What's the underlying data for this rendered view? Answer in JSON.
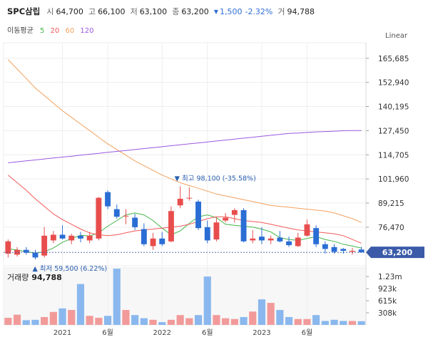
{
  "header": {
    "name": "SPC삼립",
    "open_label": "시",
    "open": "64,700",
    "high_label": "고",
    "high": "66,100",
    "low_label": "저",
    "low": "63,100",
    "close_label": "종",
    "close": "63,200",
    "change_arrow": "▼",
    "change": "1,500",
    "change_pct": "-2.32%",
    "volume_label": "거",
    "volume": "94,788"
  },
  "ma_legend": {
    "title": "이동평균",
    "periods": [
      {
        "label": "5",
        "color": "#43b549"
      },
      {
        "label": "20",
        "color": "#f15a5a"
      },
      {
        "label": "60",
        "color": "#f2a15d"
      },
      {
        "label": "120",
        "color": "#9a58e0"
      }
    ]
  },
  "scale_mode": "Linear",
  "annotations": {
    "high_marker": "▼ 최고 98,100 (-35.58%)",
    "low_marker": "▲ 최저 59,500 (6.22%)"
  },
  "last_price_tag": "63,200",
  "volume_panel": {
    "title": "거래량",
    "value": "94,788"
  },
  "colors": {
    "up": "#e84d4d",
    "down": "#2a6dd4",
    "vol_up": "#f29a9a",
    "vol_down": "#8ab8ee",
    "tag": "#3b5ba8"
  },
  "chart_data": {
    "type": "candlestick",
    "price_axis": {
      "ylim": [
        58000,
        172000
      ],
      "ticks": [
        165685,
        152940,
        140195,
        127450,
        114705,
        101960,
        89215,
        76470
      ],
      "tick_labels": [
        "165,685",
        "152,940",
        "140,195",
        "127,450",
        "114,705",
        "101,960",
        "89,215",
        "76,470"
      ]
    },
    "volume_axis": {
      "ylim": [
        0,
        1450000
      ],
      "ticks": [
        1230000,
        923000,
        615000,
        308000
      ],
      "tick_labels": [
        "1.23m",
        "923k",
        "615k",
        "308k"
      ]
    },
    "x_ticks": [
      {
        "label": "2021",
        "index": 6
      },
      {
        "label": "6월",
        "index": 11
      },
      {
        "label": "2022",
        "index": 17
      },
      {
        "label": "6월",
        "index": 22
      },
      {
        "label": "2023",
        "index": 28
      },
      {
        "label": "6월",
        "index": 33
      }
    ],
    "candles": [
      {
        "o": 62500,
        "h": 70000,
        "l": 60500,
        "c": 69000
      },
      {
        "o": 62000,
        "h": 66000,
        "l": 61000,
        "c": 64500
      },
      {
        "o": 64500,
        "h": 66000,
        "l": 62000,
        "c": 63000
      },
      {
        "o": 63000,
        "h": 64500,
        "l": 59500,
        "c": 60500
      },
      {
        "o": 61500,
        "h": 76500,
        "l": 60500,
        "c": 72000
      },
      {
        "o": 69500,
        "h": 74500,
        "l": 68000,
        "c": 72500
      },
      {
        "o": 72500,
        "h": 77500,
        "l": 70000,
        "c": 70500
      },
      {
        "o": 69500,
        "h": 73000,
        "l": 67500,
        "c": 72000
      },
      {
        "o": 72000,
        "h": 74000,
        "l": 68500,
        "c": 70500
      },
      {
        "o": 69500,
        "h": 74000,
        "l": 68000,
        "c": 72000
      },
      {
        "o": 70500,
        "h": 92500,
        "l": 69500,
        "c": 92000
      },
      {
        "o": 95000,
        "h": 96000,
        "l": 86000,
        "c": 87500
      },
      {
        "o": 86000,
        "h": 88500,
        "l": 81000,
        "c": 82000
      },
      {
        "o": 82500,
        "h": 86000,
        "l": 78000,
        "c": 82500
      },
      {
        "o": 81500,
        "h": 83500,
        "l": 75000,
        "c": 76500
      },
      {
        "o": 75500,
        "h": 78500,
        "l": 66500,
        "c": 67500
      },
      {
        "o": 66500,
        "h": 73500,
        "l": 64500,
        "c": 70500
      },
      {
        "o": 70500,
        "h": 74000,
        "l": 66500,
        "c": 67500
      },
      {
        "o": 69000,
        "h": 87500,
        "l": 68500,
        "c": 85000
      },
      {
        "o": 88000,
        "h": 98100,
        "l": 86500,
        "c": 91500
      },
      {
        "o": 92000,
        "h": 97500,
        "l": 90500,
        "c": 92000
      },
      {
        "o": 90000,
        "h": 91000,
        "l": 75000,
        "c": 76000
      },
      {
        "o": 76500,
        "h": 80000,
        "l": 68000,
        "c": 69500
      },
      {
        "o": 70000,
        "h": 81500,
        "l": 69000,
        "c": 79000
      },
      {
        "o": 80000,
        "h": 84000,
        "l": 79000,
        "c": 81500
      },
      {
        "o": 83000,
        "h": 86500,
        "l": 79000,
        "c": 85500
      },
      {
        "o": 85500,
        "h": 86500,
        "l": 68500,
        "c": 69000
      },
      {
        "o": 69500,
        "h": 75000,
        "l": 68000,
        "c": 70500
      },
      {
        "o": 71500,
        "h": 76500,
        "l": 67500,
        "c": 69500
      },
      {
        "o": 69500,
        "h": 72000,
        "l": 67500,
        "c": 70500
      },
      {
        "o": 71000,
        "h": 74500,
        "l": 68500,
        "c": 69000
      },
      {
        "o": 69000,
        "h": 71500,
        "l": 66000,
        "c": 67000
      },
      {
        "o": 66500,
        "h": 73500,
        "l": 66000,
        "c": 71000
      },
      {
        "o": 72000,
        "h": 80500,
        "l": 71500,
        "c": 78000
      },
      {
        "o": 76000,
        "h": 77500,
        "l": 66000,
        "c": 67500
      },
      {
        "o": 67500,
        "h": 69000,
        "l": 62500,
        "c": 65000
      },
      {
        "o": 66000,
        "h": 67500,
        "l": 62500,
        "c": 63500
      },
      {
        "o": 65000,
        "h": 65500,
        "l": 62500,
        "c": 64000
      },
      {
        "o": 63500,
        "h": 65500,
        "l": 62000,
        "c": 64000
      },
      {
        "o": 64700,
        "h": 66100,
        "l": 63100,
        "c": 63200
      }
    ],
    "volume": [
      180000,
      260000,
      120000,
      130000,
      200000,
      330000,
      420000,
      380000,
      1040000,
      230000,
      180000,
      230000,
      1430000,
      380000,
      250000,
      170000,
      130000,
      70000,
      130000,
      250000,
      170000,
      250000,
      1230000,
      250000,
      170000,
      150000,
      200000,
      340000,
      650000,
      560000,
      380000,
      200000,
      150000,
      150000,
      250000,
      100000,
      130000,
      100000,
      100000,
      94788
    ],
    "ma_series": [
      {
        "name": "5",
        "color": "#43b549",
        "values": [
          65000,
          64500,
          63500,
          62800,
          63500,
          65500,
          68500,
          70500,
          72200,
          71800,
          73500,
          77000,
          80000,
          83000,
          84000,
          83000,
          80000,
          76000,
          72500,
          74500,
          78500,
          82000,
          83000,
          81500,
          78000,
          77500,
          77000,
          76500,
          75500,
          74000,
          71000,
          70000,
          69500,
          70500,
          71500,
          70000,
          69000,
          67500,
          66500,
          65500
        ]
      },
      {
        "name": "20",
        "color": "#f15a5a",
        "values": [
          104000,
          100000,
          96000,
          91500,
          87500,
          83500,
          80500,
          78000,
          75500,
          73500,
          72500,
          72000,
          72500,
          73500,
          74500,
          75000,
          75500,
          76000,
          76500,
          77000,
          78000,
          79500,
          81000,
          82000,
          82000,
          81000,
          80000,
          79500,
          79000,
          78000,
          77000,
          76000,
          75000,
          74500,
          74000,
          73500,
          73000,
          72000,
          70000,
          68000
        ]
      },
      {
        "name": "60",
        "color": "#f2a15d",
        "values": [
          165000,
          160000,
          155000,
          150000,
          146000,
          142000,
          138000,
          134500,
          131000,
          127500,
          124000,
          120500,
          117500,
          114500,
          111500,
          109000,
          106500,
          104000,
          102000,
          100000,
          98500,
          97000,
          95500,
          94000,
          93000,
          92000,
          91000,
          90000,
          89000,
          88000,
          87500,
          87000,
          86500,
          86000,
          85500,
          85000,
          84000,
          82500,
          81000,
          79000
        ]
      },
      {
        "name": "120",
        "color": "#9a58e0",
        "values": [
          110500,
          111000,
          111500,
          112000,
          112500,
          113000,
          113500,
          114000,
          114500,
          115000,
          115500,
          116000,
          116500,
          117000,
          117500,
          118000,
          118500,
          119000,
          119500,
          120000,
          120500,
          121000,
          121500,
          122000,
          122500,
          123000,
          123500,
          124000,
          124500,
          125000,
          125500,
          126000,
          126200,
          126500,
          126800,
          127000,
          127200,
          127400,
          127500,
          127500
        ]
      }
    ]
  }
}
